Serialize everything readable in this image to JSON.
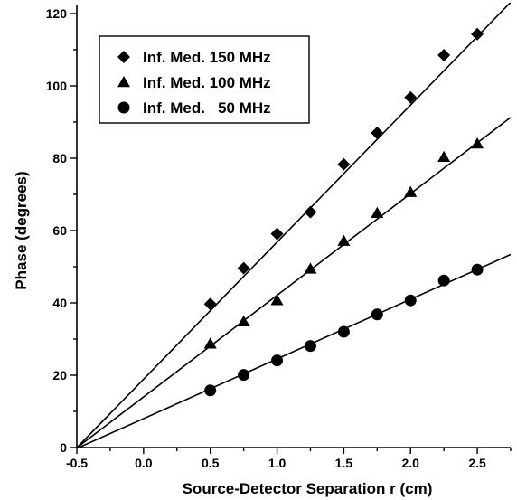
{
  "chart_data": {
    "type": "scatter",
    "xlabel": "Source-Detector Separation r (cm)",
    "ylabel": "Phase (degrees)",
    "xlim": [
      -0.5,
      2.75
    ],
    "ylim": [
      0,
      120
    ],
    "xticks": [
      -0.5,
      0.0,
      0.5,
      1.0,
      1.5,
      2.0,
      2.5
    ],
    "xtick_labels": [
      "-0.5",
      "0.0",
      "0.5",
      "1.0",
      "1.5",
      "2.0",
      "2.5"
    ],
    "yticks": [
      0,
      20,
      40,
      60,
      80,
      100,
      120
    ],
    "ytick_labels": [
      "0",
      "20",
      "40",
      "60",
      "80",
      "100",
      "120"
    ],
    "grid": false,
    "legend_position": "top-left",
    "x": [
      0.5,
      0.75,
      1.0,
      1.25,
      1.5,
      1.75,
      2.0,
      2.25,
      2.5
    ],
    "series": [
      {
        "name": "Inf. Med. 150 MHz",
        "marker": "diamond",
        "values": [
          39.7,
          49.6,
          59.1,
          65.1,
          78.3,
          87.0,
          96.8,
          108.5,
          114.3
        ],
        "fit": {
          "slope": 37.9,
          "intercept": 18.9
        }
      },
      {
        "name": "Inf. Med. 100 MHz",
        "marker": "triangle",
        "values": [
          28.7,
          34.8,
          40.7,
          49.4,
          57.1,
          64.8,
          70.6,
          80.3,
          84.0
        ],
        "fit": {
          "slope": 28.1,
          "intercept": 14.0
        }
      },
      {
        "name": "Inf. Med.   50 MHz",
        "marker": "circle",
        "values": [
          15.8,
          20.1,
          24.1,
          28.1,
          32.0,
          36.8,
          40.7,
          46.2,
          49.2
        ],
        "fit": {
          "slope": 16.5,
          "intercept": 8.0
        }
      }
    ],
    "color": "#000000"
  }
}
